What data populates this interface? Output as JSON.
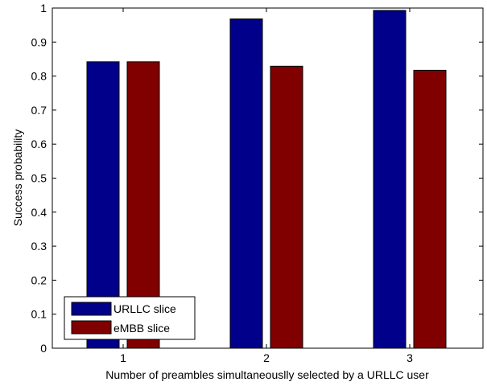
{
  "chart_data": {
    "type": "bar",
    "xlabel": "Number of preambles simultaneouslly selected by a URLLC user",
    "ylabel": "Success probability",
    "ylim": [
      0,
      1
    ],
    "yticks": [
      "0",
      "0.1",
      "0.2",
      "0.3",
      "0.4",
      "0.5",
      "0.6",
      "0.7",
      "0.8",
      "0.9",
      "1"
    ],
    "categories": [
      "1",
      "2",
      "3"
    ],
    "series": [
      {
        "name": "URLLC slice",
        "color": "#00008b",
        "values": [
          0.842,
          0.968,
          0.993
        ]
      },
      {
        "name": "eMBB slice",
        "color": "#800000",
        "values": [
          0.842,
          0.829,
          0.817
        ]
      }
    ],
    "grid": false,
    "legend": {
      "placement": "bottom-left"
    }
  }
}
